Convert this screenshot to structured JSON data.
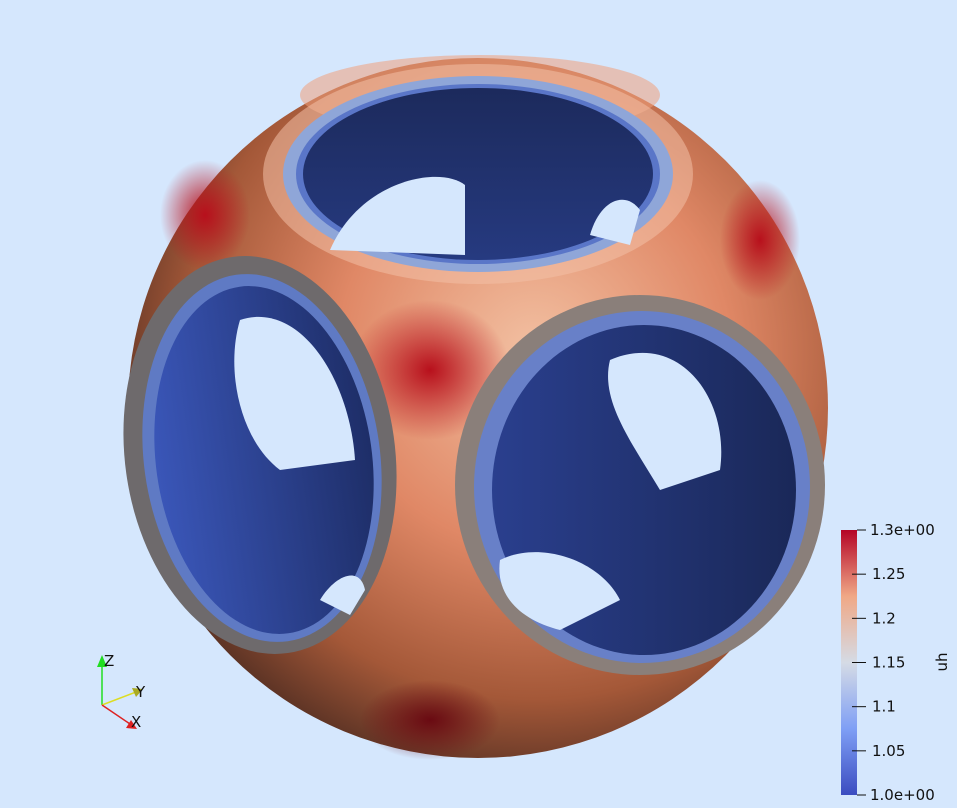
{
  "scene": {
    "background": "#d5e7fd",
    "object": "sphere-with-cube-cutouts",
    "colormap": [
      "#3b4cc0",
      "#7f9ff5",
      "#d5dbe5",
      "#f0a886",
      "#b40426"
    ]
  },
  "orientation_axes": {
    "z_label": "Z",
    "y_label": "Y",
    "x_label": "X",
    "z_color": "#22dd22",
    "y_color": "#dddd22",
    "x_color": "#dd2222"
  },
  "color_bar": {
    "title": "uh",
    "min_label": "1.0e+00",
    "max_label": "1.3e+00",
    "range": [
      1.0,
      1.3
    ],
    "ticks": [
      {
        "value": 1.05,
        "label": "1.05"
      },
      {
        "value": 1.1,
        "label": "1.1"
      },
      {
        "value": 1.15,
        "label": "1.15"
      },
      {
        "value": 1.2,
        "label": "1.2"
      },
      {
        "value": 1.25,
        "label": "1.25"
      }
    ]
  }
}
